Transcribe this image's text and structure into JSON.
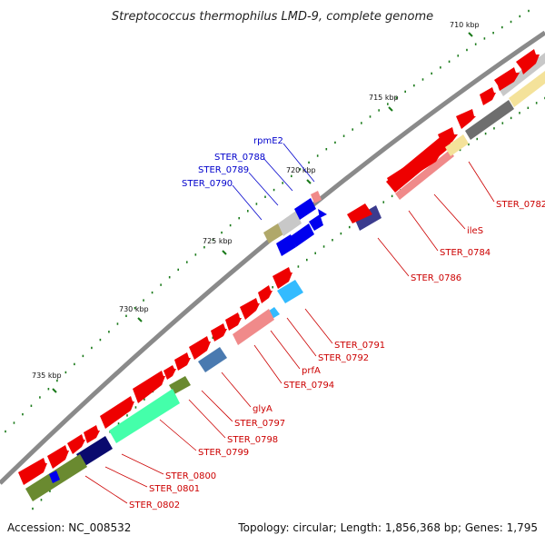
{
  "title": "Streptococcus thermophilus LMD-9, complete genome",
  "footer": {
    "accession": "Accession: NC_008532",
    "summary": "Topology: circular; Length: 1,856,368 bp; Genes: 1,795"
  },
  "ticks": [
    "710 kbp",
    "715 kbp",
    "720 kbp",
    "725 kbp",
    "730 kbp",
    "735 kbp"
  ],
  "labels": {
    "red": [
      "STER_0782",
      "ileS",
      "STER_0784",
      "STER_0786",
      "STER_0791",
      "STER_0792",
      "prfA",
      "STER_0794",
      "glyA",
      "STER_0797",
      "STER_0798",
      "STER_0799",
      "STER_0800",
      "STER_0801",
      "STER_0802"
    ],
    "blue": [
      "rpmE2",
      "STER_0788",
      "STER_0789",
      "STER_0790"
    ]
  },
  "colors": {
    "backbone": "#8a8a8a",
    "forward": "#ee0000",
    "pink": "#f08080",
    "blue": "#0000ee",
    "tick": "#1a7a1a",
    "red_label": "#cc0000",
    "blue_label": "#0000cc"
  }
}
